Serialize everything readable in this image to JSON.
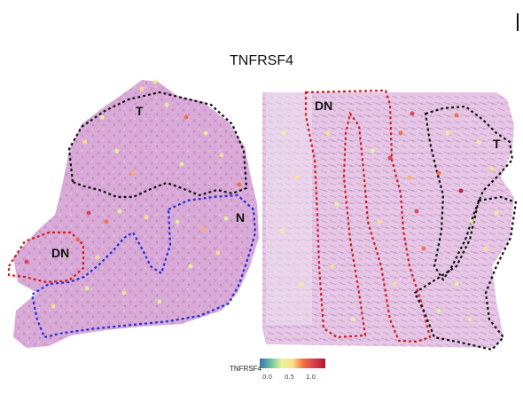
{
  "figure": {
    "panel_marker": "I",
    "title": "TNFRSF4",
    "colorbar": {
      "label": "TNFRSF4",
      "ticks": [
        "0.0",
        "0.5",
        "1.0"
      ],
      "colors": [
        "#3d6fb0",
        "#66c2a5",
        "#e6f598",
        "#fee08b",
        "#f46d43",
        "#d53e4f",
        "#b2182b"
      ]
    },
    "region_labels": {
      "left_t": "T",
      "left_n": "N",
      "left_dn": "DN",
      "right_dn": "DN",
      "right_t": "T"
    },
    "region_colors": {
      "T": "#111111",
      "N": "#1f2fd6",
      "DN": "#d21c1c"
    },
    "tissue_color": "#d8a8d6"
  }
}
